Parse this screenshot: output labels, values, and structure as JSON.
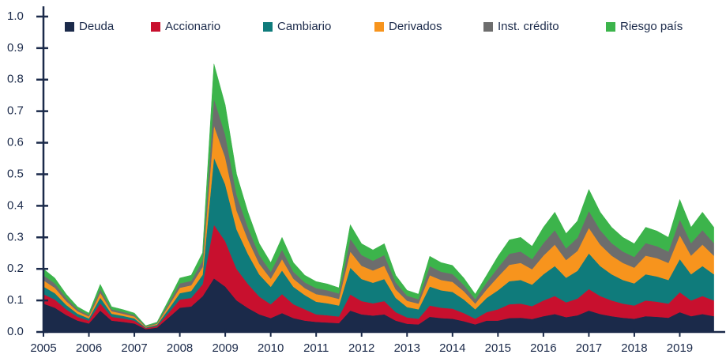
{
  "chart_data": {
    "type": "stacked_area",
    "x": [
      2005,
      2005.25,
      2005.5,
      2005.75,
      2006,
      2006.25,
      2006.5,
      2006.75,
      2007,
      2007.25,
      2007.5,
      2007.75,
      2008,
      2008.25,
      2008.5,
      2008.75,
      2009,
      2009.25,
      2009.5,
      2009.75,
      2010,
      2010.25,
      2010.5,
      2010.75,
      2011,
      2011.25,
      2011.5,
      2011.75,
      2012,
      2012.25,
      2012.5,
      2012.75,
      2013,
      2013.25,
      2013.5,
      2013.75,
      2014,
      2014.25,
      2014.5,
      2014.75,
      2015,
      2015.25,
      2015.5,
      2015.75,
      2016,
      2016.25,
      2016.5,
      2016.75,
      2017,
      2017.25,
      2017.5,
      2017.75,
      2018,
      2018.25,
      2018.5,
      2018.75,
      2019,
      2019.25,
      2019.5,
      2019.75
    ],
    "series": [
      {
        "name": "Deuda",
        "color": "#1b2a4a",
        "values": [
          0.09,
          0.077,
          0.054,
          0.036,
          0.027,
          0.068,
          0.036,
          0.032,
          0.027,
          0.009,
          0.014,
          0.045,
          0.077,
          0.081,
          0.113,
          0.17,
          0.144,
          0.1,
          0.076,
          0.056,
          0.044,
          0.06,
          0.044,
          0.036,
          0.032,
          0.03,
          0.028,
          0.068,
          0.056,
          0.052,
          0.056,
          0.036,
          0.026,
          0.024,
          0.048,
          0.044,
          0.042,
          0.034,
          0.024,
          0.036,
          0.036,
          0.044,
          0.045,
          0.041,
          0.05,
          0.057,
          0.047,
          0.053,
          0.068,
          0.057,
          0.05,
          0.045,
          0.042,
          0.05,
          0.048,
          0.045,
          0.063,
          0.05,
          0.057,
          0.05
        ]
      },
      {
        "name": "Accionario",
        "color": "#c8102e",
        "values": [
          0.03,
          0.026,
          0.018,
          0.012,
          0.009,
          0.023,
          0.012,
          0.011,
          0.009,
          0.003,
          0.005,
          0.015,
          0.026,
          0.027,
          0.038,
          0.17,
          0.144,
          0.1,
          0.076,
          0.056,
          0.044,
          0.06,
          0.044,
          0.036,
          0.024,
          0.023,
          0.021,
          0.051,
          0.042,
          0.039,
          0.042,
          0.027,
          0.02,
          0.018,
          0.036,
          0.033,
          0.032,
          0.026,
          0.018,
          0.027,
          0.036,
          0.044,
          0.045,
          0.041,
          0.05,
          0.057,
          0.047,
          0.053,
          0.068,
          0.057,
          0.05,
          0.045,
          0.042,
          0.05,
          0.048,
          0.045,
          0.063,
          0.05,
          0.057,
          0.05
        ]
      },
      {
        "name": "Cambiario",
        "color": "#0f7b7b",
        "values": [
          0.024,
          0.02,
          0.014,
          0.01,
          0.007,
          0.018,
          0.01,
          0.008,
          0.007,
          0.002,
          0.004,
          0.012,
          0.02,
          0.022,
          0.03,
          0.213,
          0.18,
          0.125,
          0.095,
          0.07,
          0.055,
          0.075,
          0.055,
          0.045,
          0.04,
          0.038,
          0.035,
          0.085,
          0.07,
          0.065,
          0.07,
          0.045,
          0.033,
          0.03,
          0.06,
          0.055,
          0.053,
          0.043,
          0.03,
          0.045,
          0.06,
          0.073,
          0.075,
          0.068,
          0.083,
          0.095,
          0.078,
          0.088,
          0.113,
          0.095,
          0.083,
          0.075,
          0.07,
          0.083,
          0.08,
          0.075,
          0.105,
          0.083,
          0.095,
          0.083
        ]
      },
      {
        "name": "Derivados",
        "color": "#f7941d",
        "values": [
          0.02,
          0.017,
          0.012,
          0.008,
          0.006,
          0.015,
          0.008,
          0.007,
          0.006,
          0.002,
          0.003,
          0.01,
          0.017,
          0.018,
          0.025,
          0.102,
          0.086,
          0.06,
          0.046,
          0.034,
          0.026,
          0.036,
          0.026,
          0.022,
          0.024,
          0.023,
          0.021,
          0.051,
          0.042,
          0.039,
          0.042,
          0.027,
          0.02,
          0.018,
          0.036,
          0.033,
          0.032,
          0.026,
          0.018,
          0.027,
          0.043,
          0.052,
          0.054,
          0.049,
          0.059,
          0.068,
          0.056,
          0.063,
          0.081,
          0.068,
          0.059,
          0.054,
          0.05,
          0.059,
          0.058,
          0.054,
          0.076,
          0.059,
          0.068,
          0.059
        ]
      },
      {
        "name": "Inst. crédito",
        "color": "#6d6d6d",
        "values": [
          0.016,
          0.014,
          0.01,
          0.006,
          0.005,
          0.012,
          0.006,
          0.006,
          0.005,
          0.002,
          0.002,
          0.008,
          0.014,
          0.014,
          0.02,
          0.085,
          0.072,
          0.05,
          0.038,
          0.028,
          0.022,
          0.03,
          0.022,
          0.018,
          0.019,
          0.018,
          0.017,
          0.041,
          0.034,
          0.031,
          0.034,
          0.022,
          0.016,
          0.014,
          0.029,
          0.026,
          0.025,
          0.02,
          0.014,
          0.022,
          0.029,
          0.035,
          0.036,
          0.032,
          0.04,
          0.046,
          0.037,
          0.042,
          0.054,
          0.046,
          0.04,
          0.036,
          0.034,
          0.04,
          0.038,
          0.036,
          0.05,
          0.04,
          0.046,
          0.04
        ]
      },
      {
        "name": "Riesgo país",
        "color": "#3cb44b",
        "values": [
          0.02,
          0.017,
          0.012,
          0.008,
          0.006,
          0.015,
          0.008,
          0.007,
          0.006,
          0.002,
          0.003,
          0.01,
          0.017,
          0.018,
          0.025,
          0.11,
          0.094,
          0.065,
          0.049,
          0.036,
          0.029,
          0.039,
          0.029,
          0.023,
          0.021,
          0.02,
          0.018,
          0.044,
          0.036,
          0.034,
          0.036,
          0.023,
          0.017,
          0.016,
          0.031,
          0.029,
          0.027,
          0.022,
          0.016,
          0.023,
          0.036,
          0.044,
          0.045,
          0.041,
          0.05,
          0.057,
          0.047,
          0.053,
          0.068,
          0.057,
          0.05,
          0.045,
          0.042,
          0.05,
          0.048,
          0.045,
          0.063,
          0.05,
          0.057,
          0.05
        ]
      }
    ],
    "xlim": [
      2005,
      2020
    ],
    "xticks": [
      2005,
      2006,
      2007,
      2008,
      2009,
      2010,
      2011,
      2012,
      2013,
      2014,
      2015,
      2016,
      2017,
      2018,
      2019
    ],
    "ylim": [
      0,
      1.05
    ],
    "yticks": [
      {
        "value": 0,
        "label": "0.0"
      },
      0.1,
      0.2,
      0.3,
      0.4,
      0.5,
      0.6,
      0.7,
      0.8,
      0.9,
      {
        "value": 1,
        "label": "1.0"
      }
    ],
    "legend": "top"
  }
}
